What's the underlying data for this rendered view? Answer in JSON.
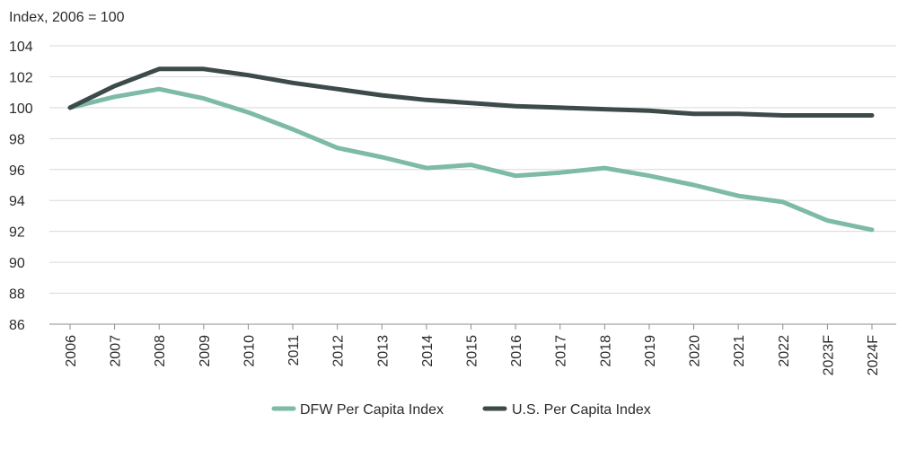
{
  "chart_data": {
    "type": "line",
    "title": "",
    "ylabel": "Index, 2006 = 100",
    "xlabel": "",
    "ylim": [
      86,
      104
    ],
    "yticks": [
      86,
      88,
      90,
      92,
      94,
      96,
      98,
      100,
      102,
      104
    ],
    "categories": [
      "2006",
      "2007",
      "2008",
      "2009",
      "2010",
      "2011",
      "2012",
      "2013",
      "2014",
      "2015",
      "2016",
      "2017",
      "2018",
      "2019",
      "2020",
      "2021",
      "2022",
      "2023F",
      "2024F"
    ],
    "grid": true,
    "legend_position": "bottom-center",
    "series": [
      {
        "name": "DFW Per Capita Index",
        "color": "#7dbaa8",
        "values": [
          100.0,
          100.7,
          101.2,
          100.6,
          99.7,
          98.6,
          97.4,
          96.8,
          96.1,
          96.3,
          95.6,
          95.8,
          96.1,
          95.6,
          95.0,
          94.3,
          93.9,
          92.7,
          92.1
        ]
      },
      {
        "name": "U.S. Per Capita Index",
        "color": "#3d4a4a",
        "values": [
          100.0,
          101.4,
          102.5,
          102.5,
          102.1,
          101.6,
          101.2,
          100.8,
          100.5,
          100.3,
          100.1,
          100.0,
          99.9,
          99.8,
          99.6,
          99.6,
          99.5,
          99.5,
          99.5
        ]
      }
    ]
  }
}
